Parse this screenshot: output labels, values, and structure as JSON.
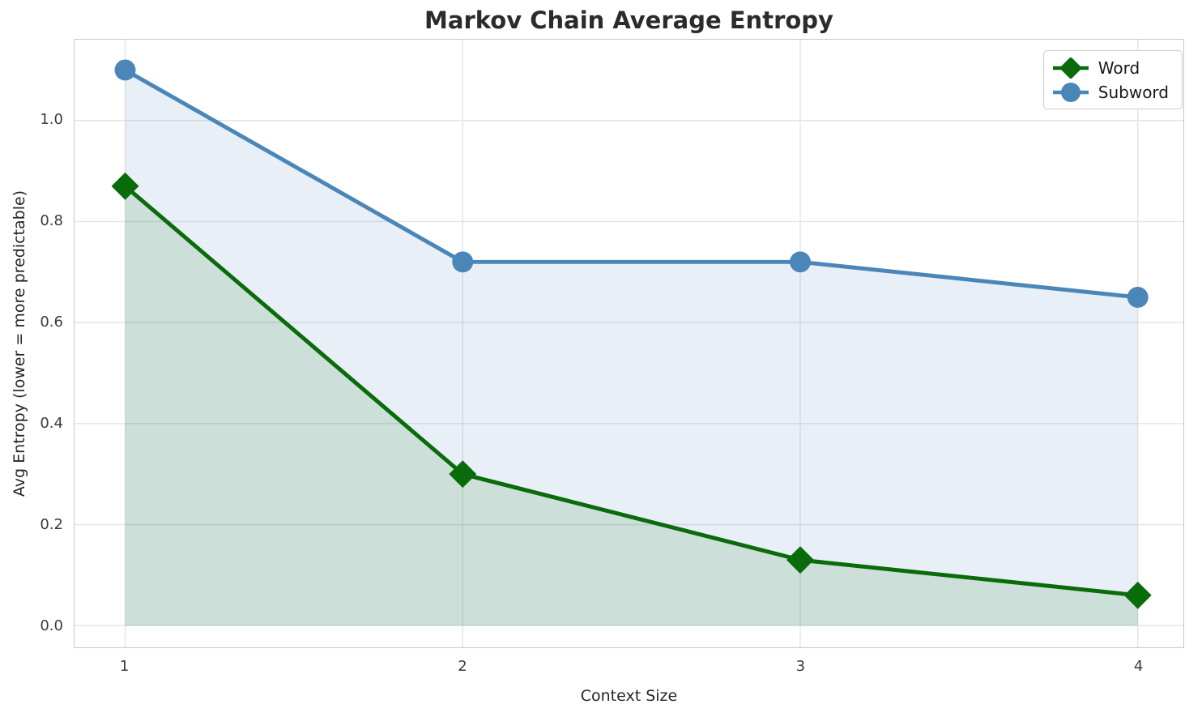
{
  "chart_data": {
    "type": "line",
    "title": "Markov Chain Average Entropy",
    "xlabel": "Context Size",
    "ylabel": "Avg Entropy (lower = more predictable)",
    "x": [
      1,
      2,
      3,
      4
    ],
    "xtick_labels": [
      "1",
      "2",
      "3",
      "4"
    ],
    "ytick_values": [
      0.0,
      0.2,
      0.4,
      0.6,
      0.8,
      1.0
    ],
    "ytick_labels": [
      "0.0",
      "0.2",
      "0.4",
      "0.6",
      "0.8",
      "1.0"
    ],
    "xlim": [
      0.85,
      4.135
    ],
    "ylim": [
      -0.043,
      1.16
    ],
    "grid": true,
    "grid_color": "#e4e4e4",
    "spine_color": "#c9c9c9",
    "background_color": "#ffffff",
    "legend_position": "upper right",
    "series": [
      {
        "name": "Word",
        "marker": "diamond",
        "color": "#0a6b0a",
        "fill_color": "rgba(10, 107, 10, 0.12)",
        "values": [
          0.87,
          0.3,
          0.13,
          0.06
        ]
      },
      {
        "name": "Subword",
        "marker": "circle",
        "color": "#4b86b9",
        "fill_color": "rgba(75, 134, 185, 0.13)",
        "values": [
          1.1,
          0.72,
          0.72,
          0.65
        ]
      }
    ]
  }
}
